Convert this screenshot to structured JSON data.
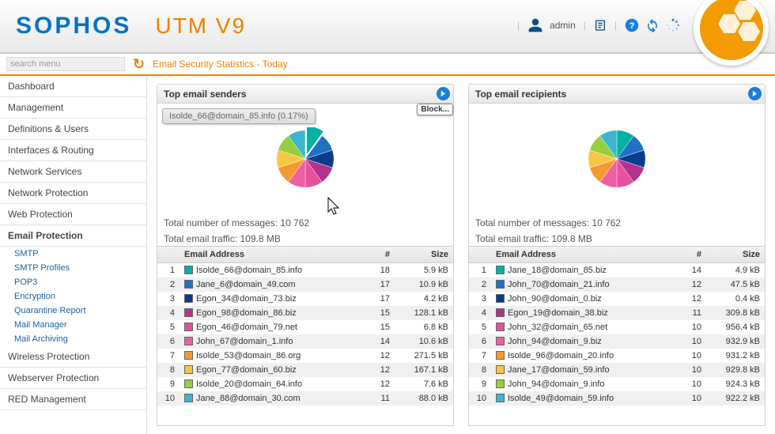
{
  "brand": {
    "vendor": "SOPHOS",
    "product": "UTM V9"
  },
  "header": {
    "user": "admin"
  },
  "toolbar": {
    "search_placeholder": "search menu",
    "breadcrumb": "Email Security Statistics - Today"
  },
  "nav": {
    "items": [
      "Dashboard",
      "Management",
      "Definitions & Users",
      "Interfaces & Routing",
      "Network Services",
      "Network Protection",
      "Web Protection",
      "Email Protection",
      "Wireless Protection",
      "Webserver Protection",
      "RED Management"
    ],
    "active": "Email Protection",
    "sub": [
      "SMTP",
      "SMTP Profiles",
      "POP3",
      "Encryption",
      "Quarantine Report",
      "Mail Manager",
      "Mail Archiving"
    ]
  },
  "block_label": "Block...",
  "tooltip_text": "Isolde_66@domain_85.info (0.17%)",
  "colors": {
    "slices": [
      "#00b1a6",
      "#1f71c4",
      "#0a3c8e",
      "#b2328e",
      "#e84f9c",
      "#ef5ea0",
      "#f49a33",
      "#f7c743",
      "#97cf3c",
      "#3bb6d1"
    ],
    "accent_orange": "#f08000",
    "accent_blue": "#0073c7"
  },
  "panels": [
    {
      "title": "Top email senders",
      "total_msgs_label": "Total number of messages:",
      "total_msgs": "10 762",
      "total_traffic_label": "Total email traffic:",
      "total_traffic": "109.8 MB",
      "columns": [
        "Email Address",
        "#",
        "Size"
      ],
      "rows": [
        {
          "n": "1",
          "c": "#00b1a6",
          "addr": "Isolde_66@domain_85.info",
          "cnt": "18",
          "size": "5.9 kB"
        },
        {
          "n": "2",
          "c": "#1f71c4",
          "addr": "Jane_6@domain_49.com",
          "cnt": "17",
          "size": "10.9 kB"
        },
        {
          "n": "3",
          "c": "#0a3c8e",
          "addr": "Egon_34@domain_73.biz",
          "cnt": "17",
          "size": "4.2 kB"
        },
        {
          "n": "4",
          "c": "#b2328e",
          "addr": "Egon_98@domain_86.biz",
          "cnt": "15",
          "size": "128.1 kB"
        },
        {
          "n": "5",
          "c": "#e84f9c",
          "addr": "Egon_46@domain_79.net",
          "cnt": "15",
          "size": "6.8 kB"
        },
        {
          "n": "6",
          "c": "#ef5ea0",
          "addr": "John_67@domain_1.info",
          "cnt": "14",
          "size": "10.6 kB"
        },
        {
          "n": "7",
          "c": "#f49a33",
          "addr": "Isolde_53@domain_86.org",
          "cnt": "12",
          "size": "271.5 kB"
        },
        {
          "n": "8",
          "c": "#f7c743",
          "addr": "Egon_77@domain_60.biz",
          "cnt": "12",
          "size": "167.1 kB"
        },
        {
          "n": "9",
          "c": "#97cf3c",
          "addr": "Isolde_20@domain_64.info",
          "cnt": "12",
          "size": "7.6 kB"
        },
        {
          "n": "10",
          "c": "#3bb6d1",
          "addr": "Jane_88@domain_30.com",
          "cnt": "11",
          "size": "88.0 kB"
        }
      ]
    },
    {
      "title": "Top email recipients",
      "total_msgs_label": "Total number of messages:",
      "total_msgs": "10 762",
      "total_traffic_label": "Total email traffic:",
      "total_traffic": "109.8 MB",
      "columns": [
        "Email Address",
        "#",
        "Size"
      ],
      "rows": [
        {
          "n": "1",
          "c": "#00b1a6",
          "addr": "Jane_18@domain_85.biz",
          "cnt": "14",
          "size": "4.9 kB"
        },
        {
          "n": "2",
          "c": "#1f71c4",
          "addr": "John_70@domain_21.info",
          "cnt": "12",
          "size": "47.5 kB"
        },
        {
          "n": "3",
          "c": "#0a3c8e",
          "addr": "John_90@domain_0.biz",
          "cnt": "12",
          "size": "0.4 kB"
        },
        {
          "n": "4",
          "c": "#b2328e",
          "addr": "Egon_19@domain_38.biz",
          "cnt": "11",
          "size": "309.8 kB"
        },
        {
          "n": "5",
          "c": "#e84f9c",
          "addr": "John_32@domain_65.net",
          "cnt": "10",
          "size": "956.4 kB"
        },
        {
          "n": "6",
          "c": "#ef5ea0",
          "addr": "John_94@domain_9.biz",
          "cnt": "10",
          "size": "932.9 kB"
        },
        {
          "n": "7",
          "c": "#f49a33",
          "addr": "Isolde_96@domain_20.info",
          "cnt": "10",
          "size": "931.2 kB"
        },
        {
          "n": "8",
          "c": "#f7c743",
          "addr": "Jane_17@domain_59.info",
          "cnt": "10",
          "size": "929.8 kB"
        },
        {
          "n": "9",
          "c": "#97cf3c",
          "addr": "John_94@domain_9.info",
          "cnt": "10",
          "size": "924.3 kB"
        },
        {
          "n": "10",
          "c": "#3bb6d1",
          "addr": "Isolde_49@domain_59.info",
          "cnt": "10",
          "size": "922.2 kB"
        }
      ]
    }
  ]
}
